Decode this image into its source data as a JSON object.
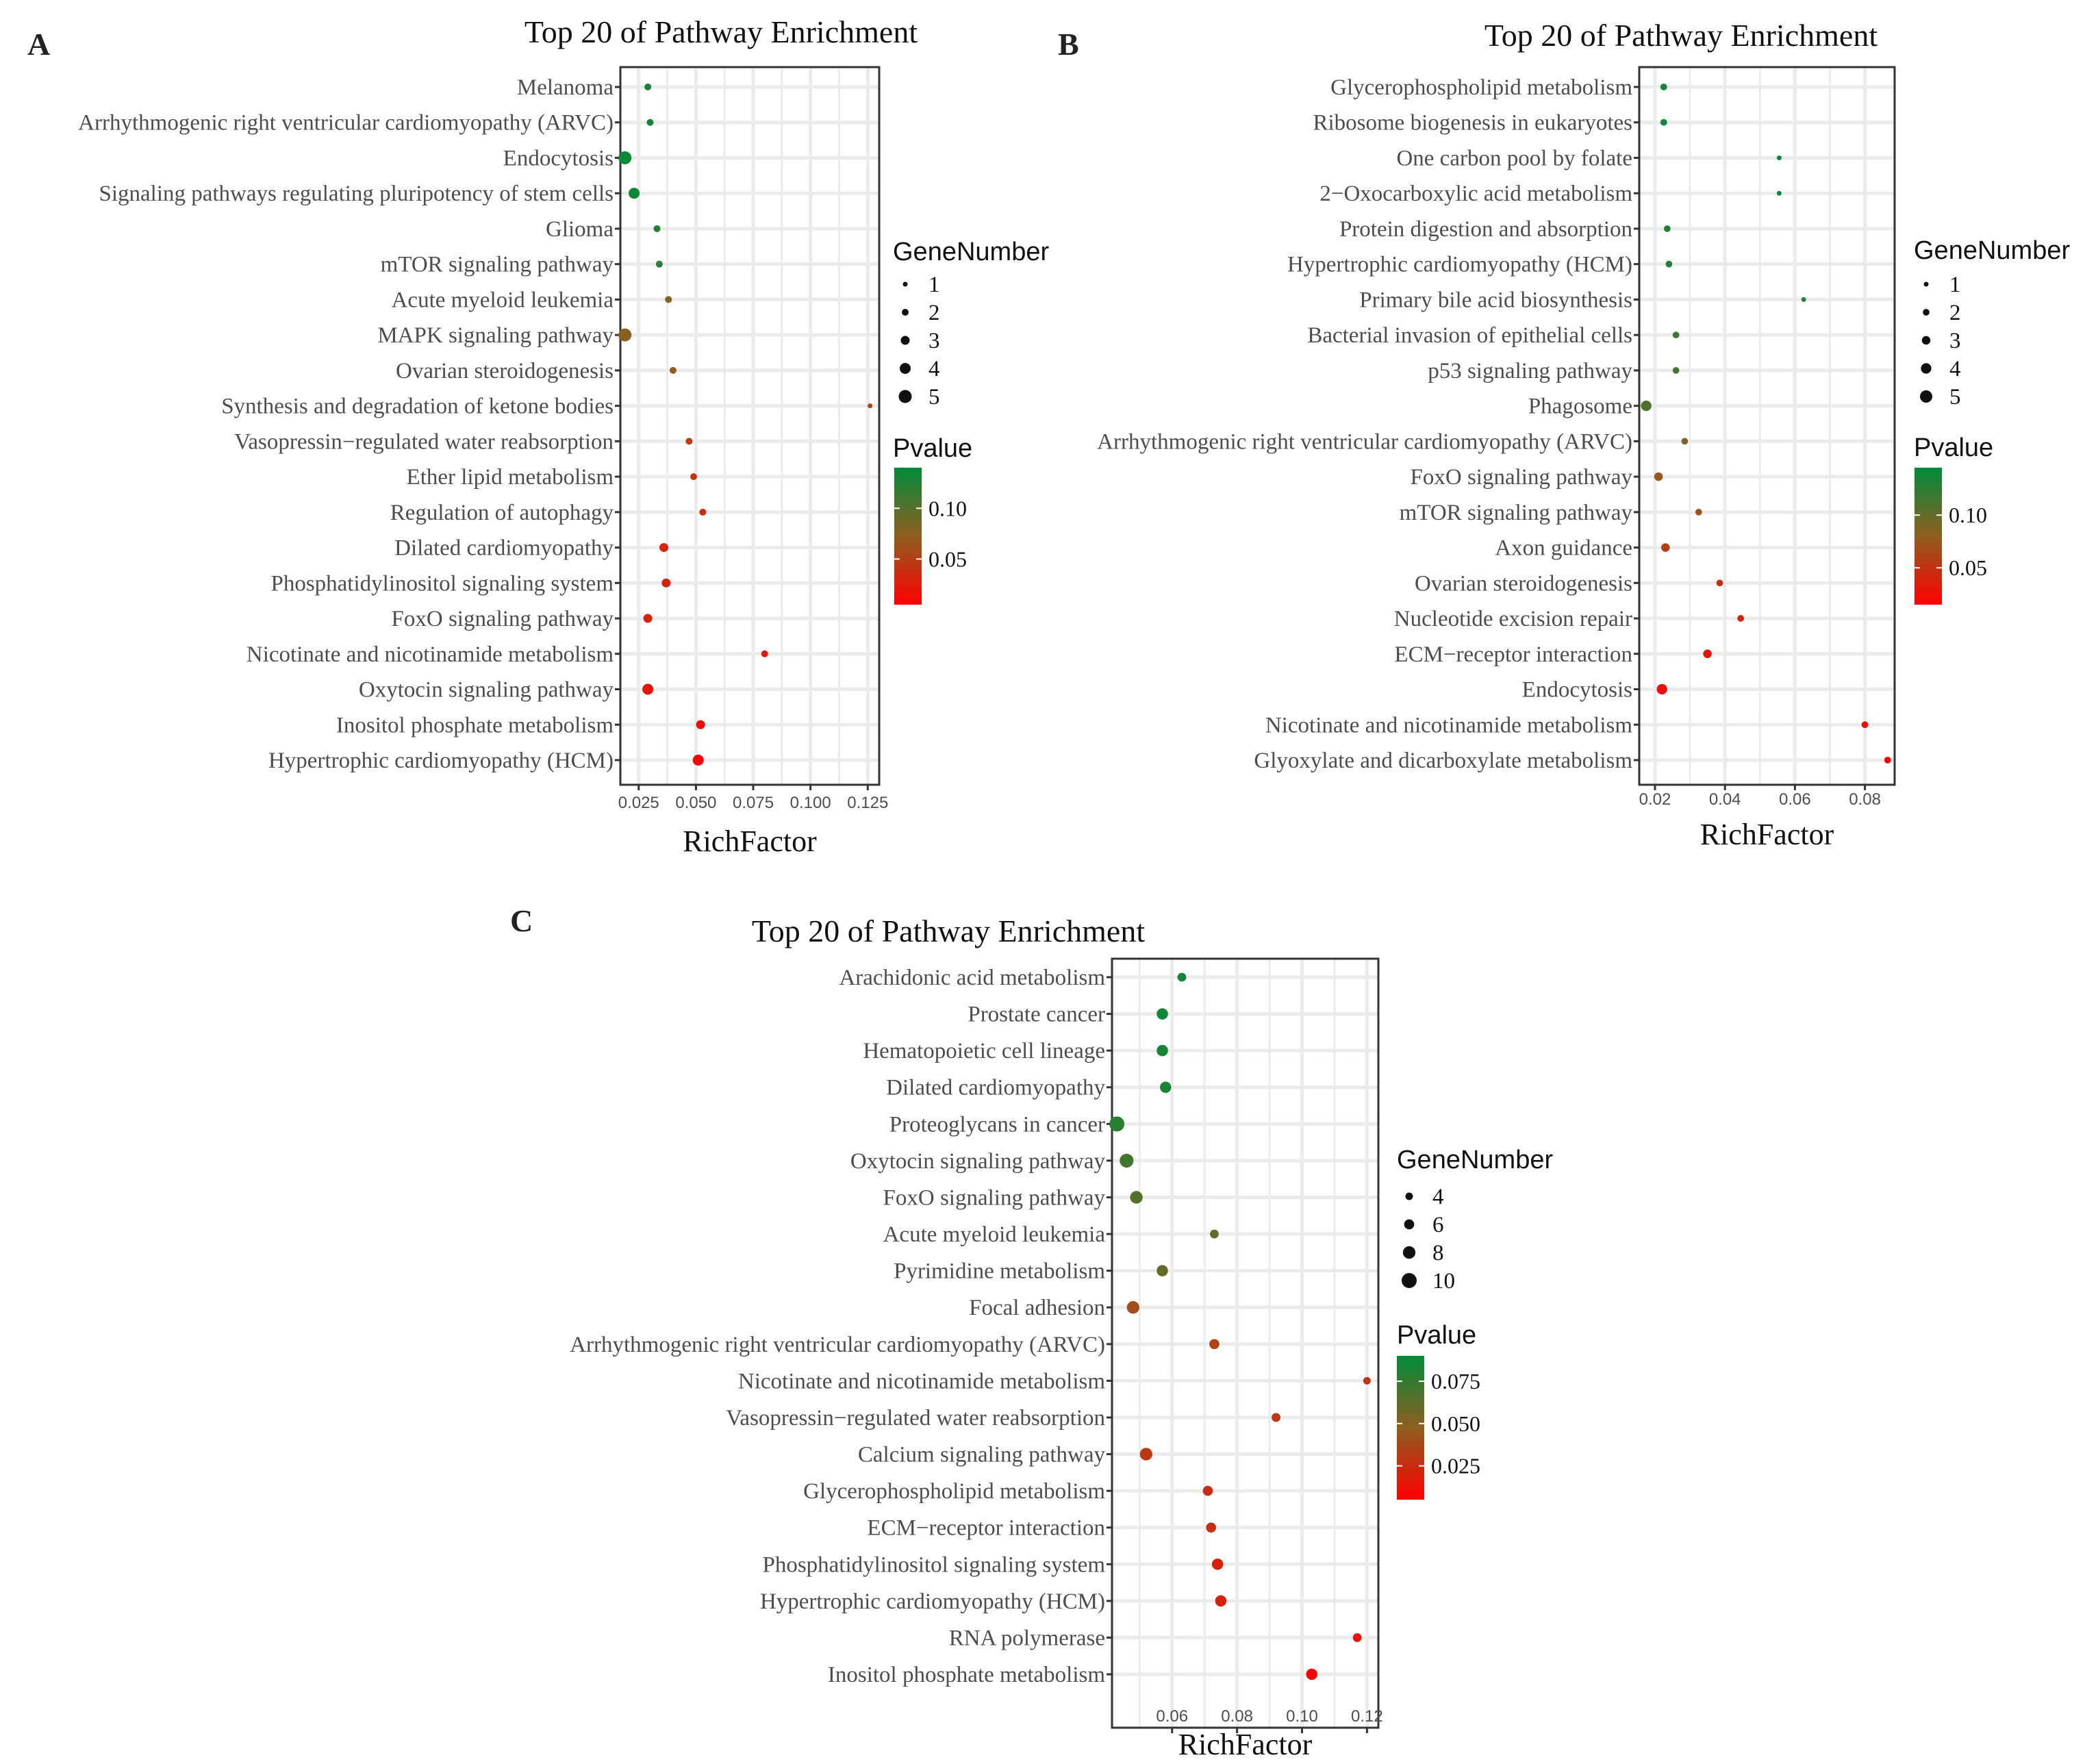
{
  "chart_data": [
    {
      "panel_label": "A",
      "type": "scatter",
      "title": "Top 20 of Pathway Enrichment",
      "xlabel": "RichFactor",
      "ylabel": "",
      "grid": true,
      "xlim": [
        0.017,
        0.13
      ],
      "xticks": [
        0.025,
        0.05,
        0.075,
        0.1,
        0.125
      ],
      "xtick_labels": [
        "0.025",
        "0.050",
        "0.075",
        "0.100",
        "0.125"
      ],
      "legend_size_title": "GeneNumber",
      "legend_size_labels": [
        "1",
        "2",
        "3",
        "4",
        "5"
      ],
      "size_domain": [
        1,
        5
      ],
      "legend_color_title": "Pvalue",
      "color_ticks": [
        0.1,
        0.05
      ],
      "color_tick_labels": [
        "0.10",
        "0.05"
      ],
      "pvalue_range": [
        0.005,
        0.14
      ],
      "categories": [
        "Melanoma",
        "Arrhythmogenic right ventricular cardiomyopathy (ARVC)",
        "Endocytosis",
        "Signaling pathways regulating pluripotency of stem cells",
        "Glioma",
        "mTOR signaling pathway",
        "Acute myeloid leukemia",
        "MAPK signaling pathway",
        "Ovarian steroidogenesis",
        "Synthesis and degradation of ketone bodies",
        "Vasopressin−regulated water reabsorption",
        "Ether lipid metabolism",
        "Regulation of autophagy",
        "Dilated cardiomyopathy",
        "Phosphatidylinositol signaling system",
        "FoxO signaling pathway",
        "Nicotinate and nicotinamide metabolism",
        "Oxytocin signaling pathway",
        "Inositol phosphate metabolism",
        "Hypertrophic cardiomyopathy (HCM)"
      ],
      "richfactor": [
        0.029,
        0.03,
        0.019,
        0.023,
        0.033,
        0.034,
        0.038,
        0.019,
        0.04,
        0.126,
        0.047,
        0.049,
        0.053,
        0.036,
        0.037,
        0.029,
        0.08,
        0.029,
        0.052,
        0.051
      ],
      "gene_number": [
        2,
        2,
        5,
        4,
        2,
        2,
        2,
        5,
        2,
        1,
        2,
        2,
        2,
        3,
        3,
        3,
        2,
        4,
        3,
        4
      ],
      "pvalue": [
        0.13,
        0.13,
        0.135,
        0.135,
        0.125,
        0.12,
        0.08,
        0.075,
        0.07,
        0.05,
        0.045,
        0.04,
        0.035,
        0.03,
        0.03,
        0.03,
        0.025,
        0.02,
        0.01,
        0.008
      ]
    },
    {
      "panel_label": "B",
      "type": "scatter",
      "title": "Top 20 of Pathway Enrichment",
      "xlabel": "RichFactor",
      "ylabel": "",
      "grid": true,
      "xlim": [
        0.0155,
        0.0885
      ],
      "xticks": [
        0.02,
        0.04,
        0.06,
        0.08
      ],
      "xtick_labels": [
        "0.02",
        "0.04",
        "0.06",
        "0.08"
      ],
      "legend_size_title": "GeneNumber",
      "legend_size_labels": [
        "1",
        "2",
        "3",
        "4",
        "5"
      ],
      "size_domain": [
        1,
        5
      ],
      "legend_color_title": "Pvalue",
      "color_ticks": [
        0.1,
        0.05
      ],
      "color_tick_labels": [
        "0.10",
        "0.05"
      ],
      "pvalue_range": [
        0.015,
        0.145
      ],
      "categories": [
        "Glycerophospholipid metabolism",
        "Ribosome biogenesis in eukaryotes",
        "One carbon pool by folate",
        "2−Oxocarboxylic acid metabolism",
        "Protein digestion and absorption",
        "Hypertrophic cardiomyopathy (HCM)",
        "Primary bile acid biosynthesis",
        "Bacterial invasion of epithelial cells",
        "p53 signaling pathway",
        "Phagosome",
        "Arrhythmogenic right ventricular cardiomyopathy (ARVC)",
        "FoxO signaling pathway",
        "mTOR signaling pathway",
        "Axon guidance",
        "Ovarian steroidogenesis",
        "Nucleotide excision repair",
        "ECM−receptor interaction",
        "Endocytosis",
        "Nicotinate and nicotinamide metabolism",
        "Glyoxylate and dicarboxylate metabolism"
      ],
      "richfactor": [
        0.0225,
        0.0225,
        0.0555,
        0.0555,
        0.0235,
        0.024,
        0.0625,
        0.026,
        0.026,
        0.0175,
        0.0285,
        0.021,
        0.0325,
        0.023,
        0.0385,
        0.0445,
        0.035,
        0.022,
        0.08,
        0.0865
      ],
      "gene_number": [
        2,
        2,
        1,
        1,
        2,
        2,
        1,
        2,
        2,
        4,
        2,
        3,
        2,
        3,
        2,
        2,
        3,
        4,
        2,
        2
      ],
      "pvalue": [
        0.14,
        0.14,
        0.14,
        0.14,
        0.135,
        0.13,
        0.13,
        0.12,
        0.115,
        0.11,
        0.09,
        0.075,
        0.07,
        0.06,
        0.045,
        0.04,
        0.03,
        0.025,
        0.02,
        0.015
      ]
    },
    {
      "panel_label": "C",
      "type": "scatter",
      "title": "Top 20 of Pathway Enrichment",
      "xlabel": "RichFactor",
      "ylabel": "",
      "grid": true,
      "xlim": [
        0.0415,
        0.1235
      ],
      "xticks": [
        0.06,
        0.08,
        0.1,
        0.12
      ],
      "xtick_labels": [
        "0.06",
        "0.08",
        "0.10",
        "0.12"
      ],
      "legend_size_title": "GeneNumber",
      "legend_size_labels": [
        "4",
        "6",
        "8",
        "10"
      ],
      "size_domain": [
        4,
        10
      ],
      "legend_color_title": "Pvalue",
      "color_ticks": [
        0.075,
        0.05,
        0.025
      ],
      "color_tick_labels": [
        "0.075",
        "0.050",
        "0.025"
      ],
      "pvalue_range": [
        0.005,
        0.09
      ],
      "categories": [
        "Arachidonic acid metabolism",
        "Prostate cancer",
        "Hematopoietic cell lineage",
        "Dilated cardiomyopathy",
        "Proteoglycans in cancer",
        "Oxytocin signaling pathway",
        "FoxO signaling pathway",
        "Acute myeloid leukemia",
        "Pyrimidine metabolism",
        "Focal adhesion",
        "Arrhythmogenic right ventricular cardiomyopathy (ARVC)",
        "Nicotinate and nicotinamide metabolism",
        "Vasopressin−regulated water reabsorption",
        "Calcium signaling pathway",
        "Glycerophospholipid metabolism",
        "ECM−receptor interaction",
        "Phosphatidylinositol signaling system",
        "Hypertrophic cardiomyopathy (HCM)",
        "RNA polymerase",
        "Inositol phosphate metabolism"
      ],
      "richfactor": [
        0.063,
        0.057,
        0.057,
        0.058,
        0.043,
        0.046,
        0.049,
        0.073,
        0.057,
        0.048,
        0.073,
        0.12,
        0.092,
        0.052,
        0.071,
        0.072,
        0.074,
        0.075,
        0.117,
        0.103
      ],
      "gene_number": [
        5,
        7,
        7,
        7,
        10,
        9,
        8,
        5,
        7,
        8,
        6,
        4,
        5,
        8,
        6,
        6,
        7,
        7,
        5,
        7
      ],
      "pvalue": [
        0.085,
        0.085,
        0.084,
        0.083,
        0.078,
        0.07,
        0.065,
        0.062,
        0.06,
        0.04,
        0.035,
        0.03,
        0.03,
        0.03,
        0.025,
        0.025,
        0.02,
        0.02,
        0.015,
        0.006
      ]
    }
  ]
}
